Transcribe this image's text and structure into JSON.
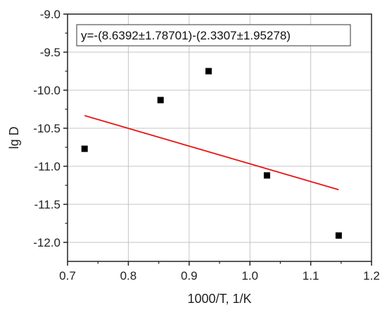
{
  "chart_data": {
    "type": "scatter",
    "title": "",
    "xlabel": "1000/T, 1/K",
    "ylabel": "lg D",
    "xlim": [
      0.7,
      1.2
    ],
    "ylim": [
      -12.25,
      -9.0
    ],
    "x_ticks": [
      "0.7",
      "0.8",
      "0.9",
      "1.0",
      "1.1",
      "1.2"
    ],
    "y_ticks": [
      "-9.0",
      "-9.5",
      "-10.0",
      "-10.5",
      "-11.0",
      "-11.5",
      "-12.0"
    ],
    "grid": true,
    "series": [
      {
        "type": "scatter",
        "marker": "square",
        "color": "#000000",
        "x": [
          0.728,
          0.853,
          0.932,
          1.028,
          1.146
        ],
        "y": [
          -10.77,
          -10.13,
          -9.75,
          -11.12,
          -11.91
        ]
      },
      {
        "type": "line",
        "color": "#e8140f",
        "x": [
          0.728,
          1.146
        ],
        "y": [
          -10.334,
          -11.308
        ]
      }
    ],
    "annotation": "y=-(8.6392±1.78701)-(2.3307±1.95278)"
  }
}
